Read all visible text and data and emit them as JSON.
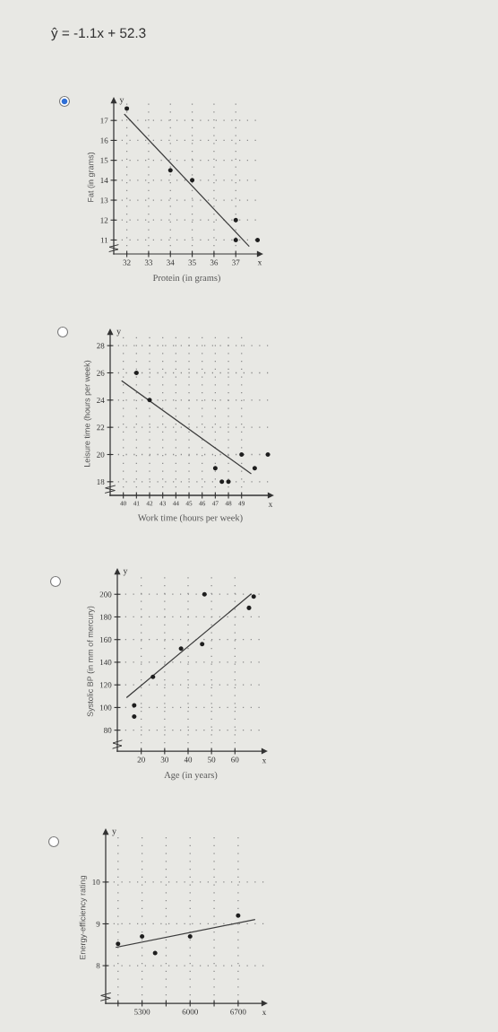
{
  "chart_data": [
    {
      "type": "scatter",
      "title": "ŷ = -1.1x + 52.3",
      "xlabel": "Protein (in grams)",
      "ylabel": "Fat (in grams)",
      "annotations": [
        "y",
        "x"
      ],
      "series": [
        {
          "marker": "circle",
          "color": "#1e1e1e",
          "x": [
            32,
            34,
            35,
            37,
            37,
            38
          ],
          "values": [
            17.6,
            14.5,
            14,
            12,
            11,
            11
          ]
        },
        {
          "type": "line",
          "line_style": "solid",
          "color": "#3c3c3c",
          "x": [
            31.9,
            37.6
          ],
          "values": [
            17.3,
            10.7
          ]
        }
      ],
      "xlim": [
        31.4,
        38.1
      ],
      "xticks": [
        32,
        33,
        34,
        35,
        36,
        37
      ],
      "ylim": [
        10.3,
        18
      ],
      "yticks": [
        11,
        12,
        13,
        14,
        15,
        16,
        17
      ],
      "grid": true
    },
    {
      "type": "scatter",
      "xlabel": "Work time (hours per week)",
      "ylabel": "Leisure time (hours per week)",
      "annotations": [
        "y",
        "x"
      ],
      "series": [
        {
          "marker": "circle",
          "color": "#1e1e1e",
          "x": [
            41,
            42,
            47,
            47.5,
            48,
            49,
            50,
            51
          ],
          "values": [
            26,
            24,
            19,
            18,
            18,
            20,
            19,
            20
          ]
        },
        {
          "type": "line",
          "line_style": "solid",
          "color": "#3c3c3c",
          "x": [
            39.9,
            49.7
          ],
          "values": [
            25.4,
            18.6
          ]
        }
      ],
      "xlim": [
        39,
        51.2
      ],
      "xticks": [
        40,
        41,
        42,
        43,
        44,
        45,
        46,
        47,
        48,
        49
      ],
      "ylim": [
        17,
        29
      ],
      "yticks": [
        18,
        20,
        22,
        24,
        26,
        28
      ],
      "grid": true
    },
    {
      "type": "scatter",
      "xlabel": "Age (in years)",
      "ylabel": "Systolic BP (in mm of mercury)",
      "annotations": [
        "y",
        "x"
      ],
      "series": [
        {
          "marker": "circle",
          "color": "#1e1e1e",
          "x": [
            17,
            17,
            25,
            37,
            46,
            47,
            66,
            68
          ],
          "values": [
            102,
            92,
            127,
            152,
            156,
            200,
            188,
            198
          ]
        },
        {
          "type": "line",
          "line_style": "solid",
          "color": "#3c3c3c",
          "x": [
            13.9,
            66.8
          ],
          "values": [
            109,
            200
          ]
        }
      ],
      "xlim": [
        9.8,
        72.5
      ],
      "xticks": [
        20,
        30,
        40,
        50,
        60
      ],
      "ylim": [
        61.5,
        220
      ],
      "yticks": [
        80,
        100,
        120,
        140,
        160,
        180,
        200
      ],
      "grid": true
    },
    {
      "type": "scatter",
      "ylabel": "Energy-efficiency rating",
      "annotations": [
        "y",
        "x"
      ],
      "series": [
        {
          "marker": "circle",
          "color": "#1e1e1e",
          "x": [
            4950,
            5300,
            5490,
            6000,
            6700
          ],
          "values": [
            8.52,
            8.7,
            8.3,
            8.7,
            9.2
          ]
        },
        {
          "type": "line",
          "line_style": "solid",
          "color": "#3c3c3c",
          "x": [
            4925,
            6940
          ],
          "values": [
            8.44,
            9.1
          ]
        }
      ],
      "xlim": [
        4770,
        7080
      ],
      "xticks": [
        {
          "value": 4950,
          "label": null
        },
        5300,
        {
          "value": 5650,
          "label": null
        },
        6000,
        {
          "value": 6350,
          "label": null
        },
        6700
      ],
      "ylim": [
        7.1,
        11.2
      ],
      "yticks": [
        8,
        9,
        10
      ],
      "grid": true
    }
  ]
}
